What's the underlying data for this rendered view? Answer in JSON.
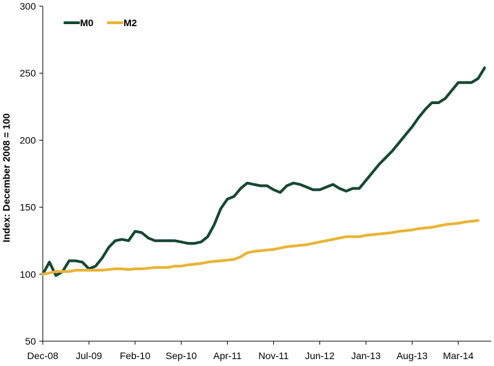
{
  "chart_data": {
    "type": "line",
    "title": "",
    "xlabel": "",
    "ylabel": "Index: December  2008 = 100",
    "ylim": [
      50,
      300
    ],
    "yticks": [
      50,
      100,
      150,
      200,
      250,
      300
    ],
    "x_tick_labels": [
      "Dec-08",
      "Jul-09",
      "Feb-10",
      "Sep-10",
      "Apr-11",
      "Nov-11",
      "Jun-12",
      "Jan-13",
      "Aug-13",
      "Mar-14"
    ],
    "x_tick_months": [
      0,
      7,
      14,
      21,
      28,
      35,
      42,
      49,
      56,
      63
    ],
    "x_range_months": [
      0,
      68
    ],
    "grid": false,
    "legend": "top-left",
    "colors": {
      "M0": "#154734",
      "M2": "#e9b434"
    },
    "series": [
      {
        "name": "M0",
        "x_months": [
          0,
          1,
          2,
          3,
          4,
          5,
          6,
          7,
          8,
          9,
          10,
          11,
          12,
          13,
          14,
          15,
          16,
          17,
          18,
          19,
          20,
          21,
          22,
          23,
          24,
          25,
          26,
          27,
          28,
          29,
          30,
          31,
          32,
          33,
          34,
          35,
          36,
          37,
          38,
          39,
          40,
          41,
          42,
          43,
          44,
          45,
          46,
          47,
          48,
          49,
          50,
          51,
          52,
          53,
          54,
          55,
          56,
          57,
          58,
          59,
          60,
          61,
          62,
          63,
          64,
          65,
          66,
          67
        ],
        "values": [
          100,
          109,
          99,
          102,
          110,
          110,
          109,
          104,
          106,
          112,
          120,
          125,
          126,
          125,
          132,
          131,
          127,
          125,
          125,
          125,
          125,
          124,
          123,
          123,
          124,
          128,
          137,
          149,
          156,
          158,
          164,
          168,
          167,
          166,
          166,
          163,
          161,
          166,
          168,
          167,
          165,
          163,
          163,
          165,
          167,
          164,
          162,
          164,
          164,
          170,
          176,
          182,
          187,
          192,
          198,
          204,
          210,
          217,
          223,
          228,
          228,
          231,
          237,
          243,
          243,
          243,
          246,
          254
        ]
      },
      {
        "name": "M2",
        "x_months": [
          0,
          1,
          2,
          3,
          4,
          5,
          6,
          7,
          8,
          9,
          10,
          11,
          12,
          13,
          14,
          15,
          16,
          17,
          18,
          19,
          20,
          21,
          22,
          23,
          24,
          25,
          26,
          27,
          28,
          29,
          30,
          31,
          32,
          33,
          34,
          35,
          36,
          37,
          38,
          39,
          40,
          41,
          42,
          43,
          44,
          45,
          46,
          47,
          48,
          49,
          50,
          51,
          52,
          53,
          54,
          55,
          56,
          57,
          58,
          59,
          60,
          61,
          62,
          63,
          64,
          65,
          66
        ],
        "values": [
          100,
          101,
          102,
          102,
          102,
          103,
          103,
          103,
          103,
          103,
          103.5,
          104,
          104,
          103.5,
          104,
          104,
          104.5,
          105,
          105,
          105,
          106,
          106,
          107,
          107.5,
          108,
          109,
          109.5,
          110,
          110.5,
          111,
          113,
          116,
          117,
          117.5,
          118,
          118.5,
          119.5,
          120.5,
          121,
          121.5,
          122,
          123,
          124,
          125,
          126,
          127,
          128,
          128,
          128,
          129,
          129.5,
          130,
          130.5,
          131,
          132,
          132.5,
          133,
          134,
          134.5,
          135,
          136,
          137,
          137.5,
          138,
          139,
          139.5,
          140
        ]
      }
    ]
  }
}
